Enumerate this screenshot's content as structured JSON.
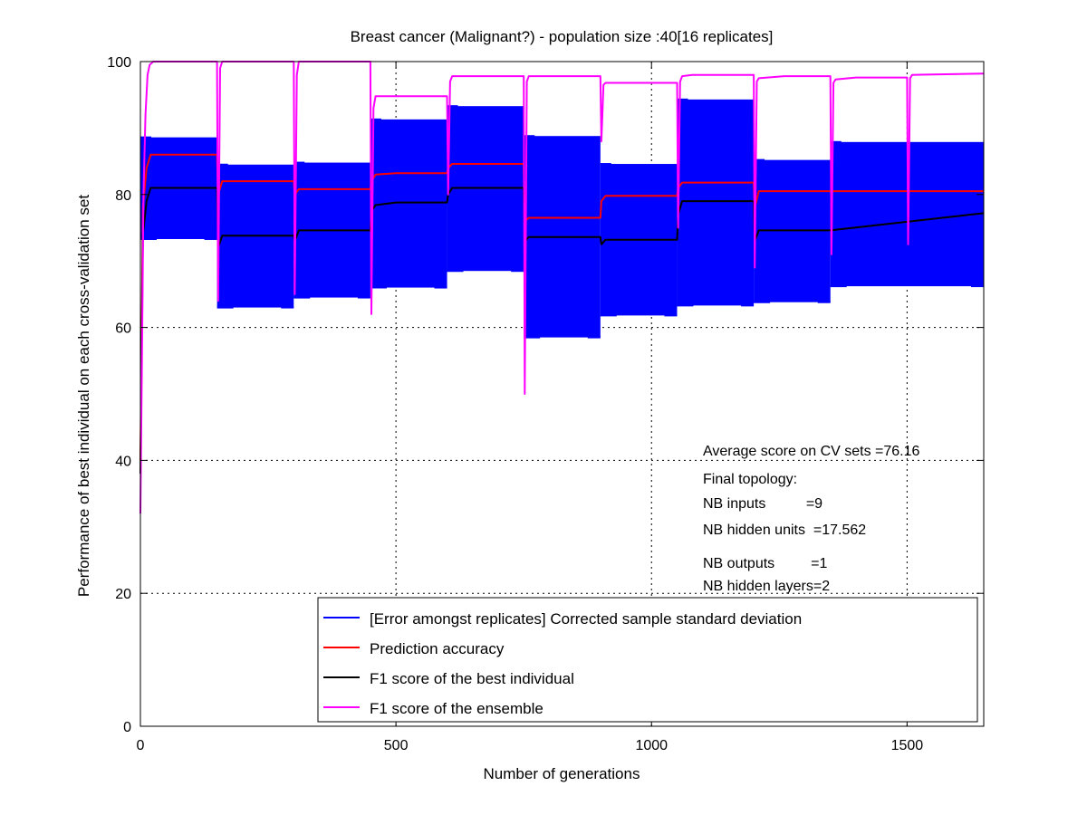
{
  "chart_data": {
    "type": "line",
    "title": "Breast cancer (Malignant?) - population size :40[16 replicates]",
    "xlabel": "Number of generations",
    "ylabel": "Performance of best individual on each cross-validation set",
    "xlim": [
      0,
      1650
    ],
    "ylim": [
      0,
      100
    ],
    "xticks": [
      0,
      500,
      1000,
      1500
    ],
    "yticks": [
      0,
      20,
      40,
      60,
      80,
      100
    ],
    "grid": true,
    "legend_position": "bottom-right",
    "segment_boundaries": [
      0,
      150,
      300,
      450,
      600,
      750,
      900,
      1050,
      1200,
      1350,
      1650
    ],
    "series": [
      {
        "name": "[Error amongst replicates] Corrected sample standard deviation",
        "color": "#0000ff",
        "kind": "band",
        "segments": [
          {
            "x": [
              0,
              150
            ],
            "low": 73.3,
            "high": 88.6
          },
          {
            "x": [
              150,
              300
            ],
            "low": 63.0,
            "high": 84.5
          },
          {
            "x": [
              300,
              450
            ],
            "low": 64.5,
            "high": 84.8
          },
          {
            "x": [
              450,
              600
            ],
            "low": 66.0,
            "high": 91.3
          },
          {
            "x": [
              600,
              750
            ],
            "low": 68.5,
            "high": 93.3
          },
          {
            "x": [
              750,
              900
            ],
            "low": 58.5,
            "high": 88.8
          },
          {
            "x": [
              900,
              1050
            ],
            "low": 61.8,
            "high": 84.6
          },
          {
            "x": [
              1050,
              1200
            ],
            "low": 63.3,
            "high": 94.3
          },
          {
            "x": [
              1200,
              1350
            ],
            "low": 63.8,
            "high": 85.2
          },
          {
            "x": [
              1350,
              1650
            ],
            "low": 66.2,
            "high": 87.9
          }
        ]
      },
      {
        "name": "Prediction accuracy",
        "color": "#ff0000",
        "kind": "line",
        "x": [
          0,
          5,
          12,
          20,
          150,
          152,
          160,
          300,
          302,
          310,
          450,
          452,
          460,
          500,
          600,
          602,
          610,
          750,
          752,
          760,
          900,
          902,
          910,
          1050,
          1052,
          1060,
          1200,
          1202,
          1210,
          1350,
          1650
        ],
        "y": [
          40,
          78,
          84,
          86,
          86,
          80,
          82,
          82,
          80,
          80.8,
          80.8,
          82,
          83,
          83.2,
          83.2,
          84,
          84.6,
          84.6,
          76,
          76.5,
          76.5,
          79,
          79.8,
          79.8,
          81,
          81.8,
          81.8,
          78,
          80.5,
          80.5,
          80.5
        ]
      },
      {
        "name": "F1 score of the best individual",
        "color": "#000000",
        "kind": "line",
        "x": [
          0,
          5,
          12,
          20,
          150,
          152,
          160,
          300,
          302,
          310,
          450,
          452,
          460,
          500,
          600,
          602,
          610,
          750,
          752,
          760,
          900,
          902,
          910,
          1050,
          1052,
          1060,
          1200,
          1202,
          1210,
          1350,
          1650
        ],
        "y": [
          38,
          74,
          79,
          81,
          81,
          72,
          73.8,
          73.8,
          73,
          74.6,
          74.6,
          77.5,
          78.4,
          78.8,
          78.8,
          80,
          81,
          81,
          73,
          73.6,
          73.6,
          72.5,
          73.2,
          73.2,
          77,
          79,
          79,
          73,
          74.6,
          74.6,
          77.2
        ]
      },
      {
        "name": "F1 score of the ensemble",
        "color": "#ff00ff",
        "kind": "line",
        "x": [
          0,
          3,
          6,
          10,
          14,
          18,
          25,
          150,
          152,
          156,
          160,
          300,
          302,
          306,
          310,
          450,
          452,
          456,
          460,
          600,
          602,
          606,
          610,
          630,
          750,
          752,
          756,
          760,
          900,
          902,
          906,
          910,
          1050,
          1052,
          1056,
          1060,
          1080,
          1200,
          1202,
          1206,
          1210,
          1260,
          1350,
          1352,
          1356,
          1360,
          1400,
          1500,
          1502,
          1506,
          1510,
          1650
        ],
        "y": [
          32,
          55,
          80,
          92,
          98,
          99.5,
          100,
          100,
          64,
          99,
          100,
          100,
          65,
          98,
          100,
          100,
          62,
          93,
          94.8,
          94.8,
          80,
          97,
          97.8,
          97.8,
          97.8,
          50,
          97,
          97.8,
          97.8,
          88,
          96.5,
          96.8,
          96.8,
          75,
          97,
          97.8,
          98,
          98,
          69,
          97,
          97.5,
          97.8,
          97.8,
          71,
          96.8,
          97.3,
          97.6,
          97.6,
          72.5,
          97.5,
          98,
          98.2
        ]
      }
    ],
    "annotations": [
      "Average score on CV sets =76.16",
      "Final topology:",
      "NB inputs          =9",
      "NB hidden units  =17.562",
      "NB outputs         =1",
      "NB hidden layers=2"
    ]
  }
}
